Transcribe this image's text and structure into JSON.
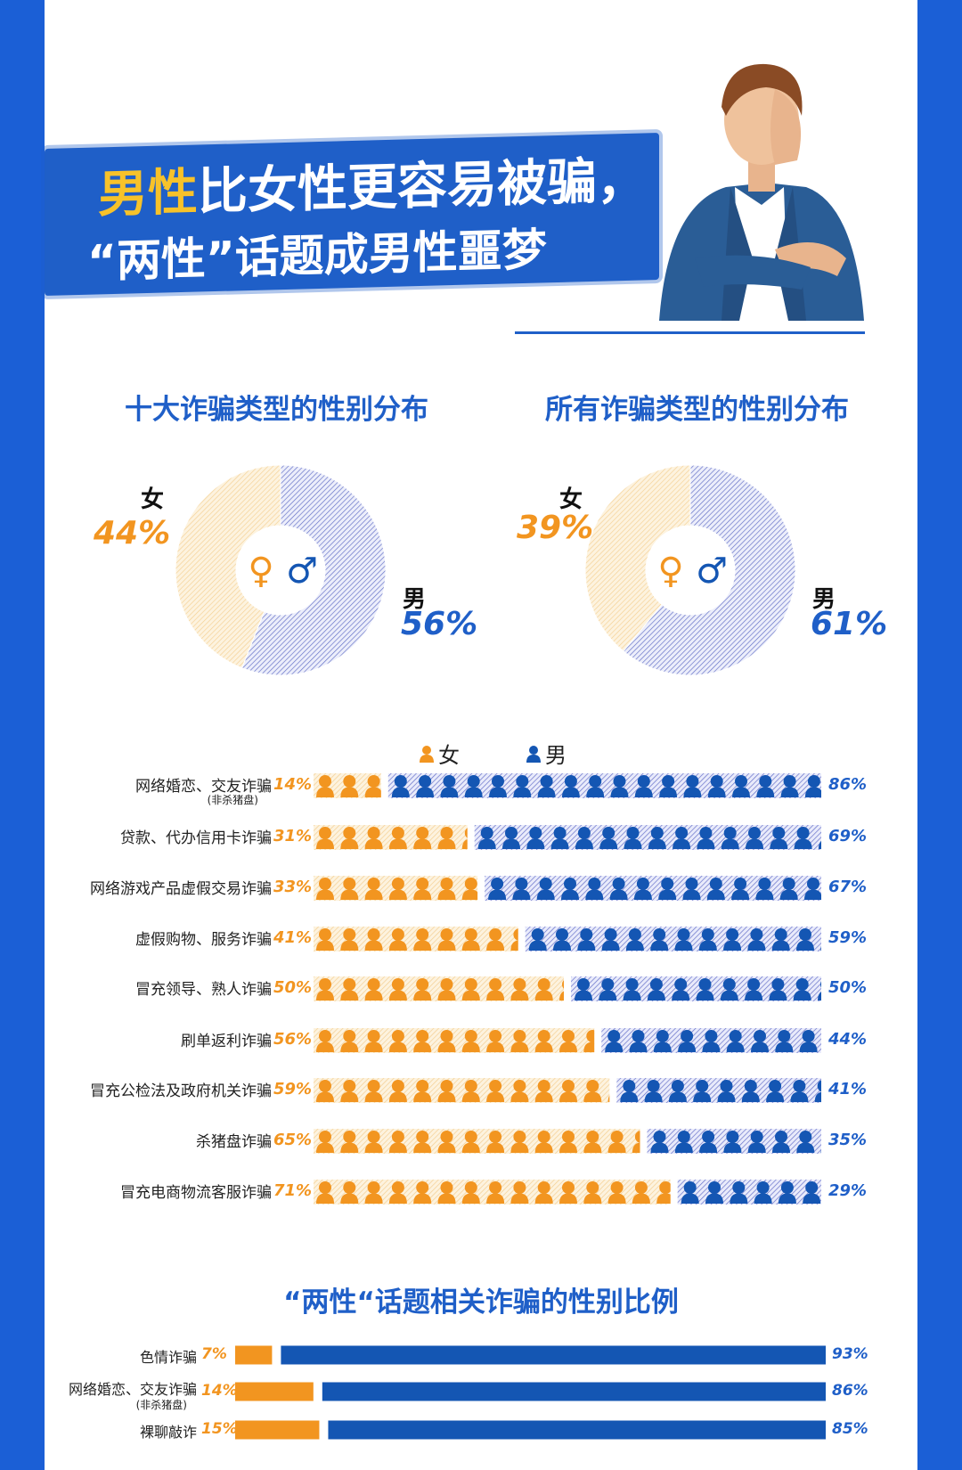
{
  "title": {
    "highlight": "男性",
    "line1_rest": "比女性更容易被骗，",
    "line2": "“两性”话题成男性噩梦"
  },
  "donuts": {
    "left": {
      "title": "十大诈骗类型的性别分布",
      "female_label": "女",
      "female_pct": "44%",
      "male_label": "男",
      "male_pct": "56%",
      "female_value": 44,
      "male_value": 56
    },
    "right": {
      "title": "所有诈骗类型的性别分布",
      "female_label": "女",
      "female_pct": "39%",
      "male_label": "男",
      "male_pct": "61%",
      "female_value": 39,
      "male_value": 61
    },
    "female_symbol": "♀",
    "male_symbol": "♂"
  },
  "legend": {
    "female": "女",
    "male": "男"
  },
  "colors": {
    "female": "#f29520",
    "female_bg": "#fde9c4",
    "male": "#1456b3",
    "male_bg": "#c9ddf0",
    "accent": "#1f5fc8"
  },
  "chart_data": [
    {
      "type": "bar",
      "title": "",
      "categories": [
        "网络婚恋、交友诈骗",
        "贷款、代办信用卡诈骗",
        "网络游戏产品虚假交易诈骗",
        "虚假购物、服务诈骗",
        "冒充领导、熟人诈骗",
        "刷单返利诈骗",
        "冒充公检法及政府机关诈骗",
        "杀猪盘诈骗",
        "冒充电商物流客服诈骗"
      ],
      "category_notes": [
        "(非杀猪盘)",
        "",
        "",
        "",
        "",
        "",
        "",
        "",
        ""
      ],
      "series": [
        {
          "name": "女",
          "values": [
            14,
            31,
            33,
            41,
            50,
            56,
            59,
            65,
            71
          ],
          "labels": [
            "14%",
            "31%",
            "33%",
            "41%",
            "50%",
            "56%",
            "59%",
            "65%",
            "71%"
          ]
        },
        {
          "name": "男",
          "values": [
            86,
            69,
            67,
            59,
            50,
            44,
            41,
            35,
            29
          ],
          "labels": [
            "86%",
            "69%",
            "67%",
            "59%",
            "50%",
            "44%",
            "41%",
            "35%",
            "29%"
          ]
        }
      ]
    },
    {
      "type": "bar",
      "title": "“两性“话题相关诈骗的性别比例",
      "categories": [
        "色情诈骗",
        "网络婚恋、交友诈骗",
        "裸聊敲诈"
      ],
      "category_notes": [
        "",
        "(非杀猪盘)",
        ""
      ],
      "series": [
        {
          "name": "女",
          "values": [
            7,
            14,
            15
          ],
          "labels": [
            "7%",
            "14%",
            "15%"
          ]
        },
        {
          "name": "男",
          "values": [
            93,
            86,
            85
          ],
          "labels": [
            "93%",
            "86%",
            "85%"
          ]
        }
      ]
    }
  ]
}
